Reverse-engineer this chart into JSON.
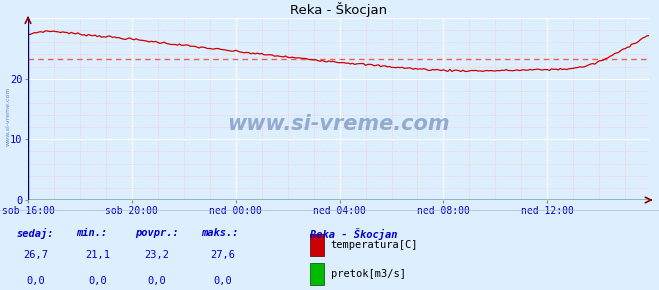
{
  "title": "Reka - Škocjan",
  "bg_color": "#ddeeff",
  "plot_bg_color": "#ddeeff",
  "line_color": "#cc0000",
  "avg_line_color": "#ff5555",
  "grid_white_color": "#ffffff",
  "grid_pink_color": "#ffbbbb",
  "axis_color": "#880000",
  "xlabel_color": "#0000cc",
  "ylabel_color": "#0000cc",
  "side_watermark_color": "#6688bb",
  "xtick_labels": [
    "sob 16:00",
    "sob 20:00",
    "ned 00:00",
    "ned 04:00",
    "ned 08:00",
    "ned 12:00"
  ],
  "xtick_positions": [
    0,
    48,
    96,
    144,
    192,
    240
  ],
  "ytick_positions": [
    0,
    10,
    20
  ],
  "ylim": [
    0,
    30
  ],
  "xlim": [
    0,
    287
  ],
  "n_points": 288,
  "avg_value": 23.2,
  "watermark": "www.si-vreme.com",
  "watermark_color": "#5577aa",
  "legend_title": "Reka - Škocjan",
  "temp_color": "#cc0000",
  "flow_color": "#00bb00",
  "stats_label_color": "#0000cc",
  "stats_value_color": "#0000cc",
  "col_headers": [
    "sedaj:",
    "min.:",
    "povpr.:",
    "maks.:"
  ],
  "temp_vals": [
    "26,7",
    "21,1",
    "23,2",
    "27,6"
  ],
  "flow_vals": [
    "0,0",
    "0,0",
    "0,0",
    "0,0"
  ],
  "temp_label": "temperatura[C]",
  "flow_label": "pretok[m3/s]",
  "temp_key_pts_x": [
    0,
    8,
    20,
    40,
    60,
    96,
    130,
    160,
    185,
    210,
    240,
    260,
    275,
    287
  ],
  "temp_key_pts_y": [
    27.2,
    27.8,
    27.5,
    26.8,
    26.0,
    24.5,
    23.2,
    22.2,
    21.5,
    21.3,
    21.5,
    22.3,
    24.8,
    27.2
  ]
}
